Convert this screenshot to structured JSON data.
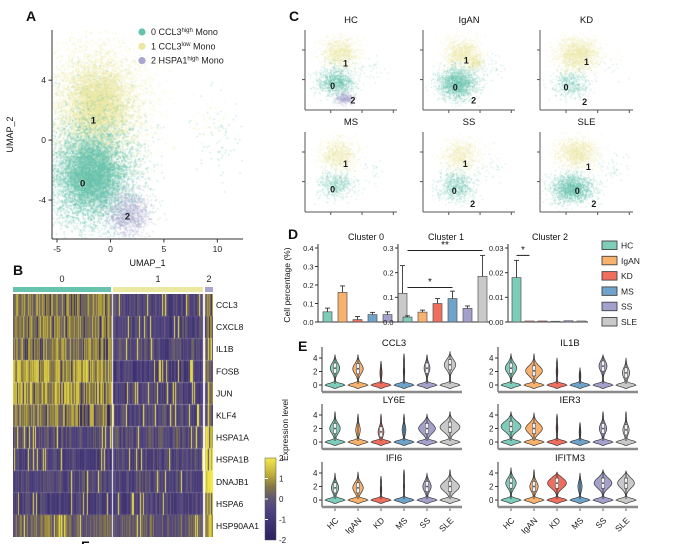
{
  "colors": {
    "cluster0": "#68C3AE",
    "cluster1": "#EBE8A2",
    "cluster2": "#A9A5CE",
    "groups": [
      "#7ECCBA",
      "#F9B16E",
      "#EF6E5E",
      "#6FA3C9",
      "#A3A0CC",
      "#C9C9C9"
    ],
    "axis": "#333333"
  },
  "panels": {
    "A": {
      "label": "A"
    },
    "B": {
      "label": "B"
    },
    "C": {
      "label": "C"
    },
    "D": {
      "label": "D"
    },
    "E": {
      "label": "E"
    },
    "F": {
      "label": "F"
    }
  },
  "chart_data": [
    {
      "id": "A",
      "type": "scatter",
      "xlabel": "UMAP_1",
      "ylabel": "UMAP_2",
      "xticks": [
        -5,
        0,
        5,
        10
      ],
      "yticks": [
        4,
        0,
        -4
      ],
      "xlim": [
        -5.47,
        12.4
      ],
      "ylim": [
        -6.6,
        7.35
      ],
      "legend": [
        {
          "pre": "0 CCL3",
          "sup": "high",
          "post": " Mono",
          "color": "#68C3AE"
        },
        {
          "pre": "1 CCL3",
          "sup": "low",
          "post": " Mono",
          "color": "#EBE8A2"
        },
        {
          "pre": "2 HSPA1",
          "sup": "high",
          "post": " Mono",
          "color": "#A9A5CE"
        }
      ],
      "clusters": [
        {
          "name": "1",
          "color": "#EBE8A2",
          "cx": -1.2,
          "cy": 2.4,
          "sx": 2.3,
          "sy": 2.0,
          "n": 4500,
          "label": [
            -1.6,
            1.3
          ]
        },
        {
          "name": "0",
          "color": "#68C3AE",
          "cx": -1.8,
          "cy": -2.3,
          "sx": 2.3,
          "sy": 1.9,
          "n": 5000,
          "label": [
            -2.6,
            -2.9
          ]
        },
        {
          "name": "2",
          "color": "#A9A5CE",
          "cx": 1.6,
          "cy": -4.9,
          "sx": 1.05,
          "sy": 0.75,
          "n": 900,
          "label": [
            1.6,
            -5.1
          ]
        },
        {
          "name": "",
          "color": "#68C3AE",
          "cx": 9.8,
          "cy": 0.2,
          "sx": 1.2,
          "sy": 1.4,
          "n": 70
        },
        {
          "name": "",
          "color": "#EBE8A2",
          "cx": 9.4,
          "cy": 1.2,
          "sx": 1.2,
          "sy": 0.9,
          "n": 40
        }
      ]
    },
    {
      "id": "B",
      "type": "heatmap",
      "group_labels": [
        "0",
        "1",
        "2"
      ],
      "genes": [
        "CCL3",
        "CXCL8",
        "IL1B",
        "FOSB",
        "JUN",
        "KLF4",
        "HSPA1A",
        "HSPA1B",
        "DNAJB1",
        "HSPA6",
        "HSP90AA1"
      ],
      "means": [
        [
          0.7,
          -0.55,
          0.6
        ],
        [
          0.8,
          -0.6,
          0.4
        ],
        [
          0.75,
          -0.45,
          0.3
        ],
        [
          1.15,
          -0.75,
          0.1
        ],
        [
          1.1,
          -0.65,
          0.3
        ],
        [
          0.7,
          -0.45,
          0.1
        ],
        [
          -0.35,
          -0.35,
          1.9
        ],
        [
          -0.65,
          -0.6,
          1.9
        ],
        [
          -0.45,
          -0.45,
          1.8
        ],
        [
          -0.75,
          -0.7,
          1.3
        ],
        [
          0.25,
          0.05,
          1.5
        ]
      ],
      "colorbar_ticks": [
        "2",
        "1",
        "0",
        "-1",
        "-2"
      ]
    },
    {
      "id": "C",
      "type": "scatter-grid",
      "plots": [
        {
          "title": "HC",
          "labels": [
            {
              "t": "1",
              "x": 0.44,
              "y": 0.58
            },
            {
              "t": "0",
              "x": 0.3,
              "y": 0.3
            },
            {
              "t": "2",
              "x": 0.52,
              "y": 0.12
            }
          ],
          "blobs": [
            {
              "c": "y",
              "cx": 0.38,
              "cy": 0.72,
              "sx": 0.105,
              "sy": 0.095,
              "n": 900
            },
            {
              "c": "t",
              "cx": 0.34,
              "cy": 0.36,
              "sx": 0.1,
              "sy": 0.09,
              "n": 1000
            },
            {
              "c": "p",
              "cx": 0.43,
              "cy": 0.145,
              "sx": 0.05,
              "sy": 0.038,
              "n": 320
            },
            {
              "c": "t",
              "cx": 0.75,
              "cy": 0.55,
              "sx": 0.08,
              "sy": 0.09,
              "n": 28
            }
          ]
        },
        {
          "title": "IgAN",
          "labels": [
            {
              "t": "1",
              "x": 0.47,
              "y": 0.62
            },
            {
              "t": "0",
              "x": 0.35,
              "y": 0.28
            },
            {
              "t": "2",
              "x": 0.55,
              "y": 0.12
            }
          ],
          "blobs": [
            {
              "c": "y",
              "cx": 0.42,
              "cy": 0.72,
              "sx": 0.1,
              "sy": 0.09,
              "n": 850
            },
            {
              "c": "y",
              "cx": 0.56,
              "cy": 0.6,
              "sx": 0.05,
              "sy": 0.05,
              "n": 260
            },
            {
              "c": "t",
              "cx": 0.37,
              "cy": 0.34,
              "sx": 0.105,
              "sy": 0.095,
              "n": 1700
            },
            {
              "c": "t",
              "cx": 0.75,
              "cy": 0.55,
              "sx": 0.08,
              "sy": 0.09,
              "n": 36
            }
          ]
        },
        {
          "title": "KD",
          "labels": [
            {
              "t": "1",
              "x": 0.5,
              "y": 0.6
            },
            {
              "t": "0",
              "x": 0.28,
              "y": 0.28
            },
            {
              "t": "2",
              "x": 0.48,
              "y": 0.1
            }
          ],
          "blobs": [
            {
              "c": "y",
              "cx": 0.4,
              "cy": 0.7,
              "sx": 0.115,
              "sy": 0.105,
              "n": 1500
            },
            {
              "c": "t",
              "cx": 0.33,
              "cy": 0.33,
              "sx": 0.1,
              "sy": 0.09,
              "n": 450
            },
            {
              "c": "t",
              "cx": 0.75,
              "cy": 0.55,
              "sx": 0.08,
              "sy": 0.09,
              "n": 12
            },
            {
              "c": "y",
              "cx": 0.8,
              "cy": 0.65,
              "sx": 0.05,
              "sy": 0.05,
              "n": 8
            }
          ]
        },
        {
          "title": "MS",
          "labels": [
            {
              "t": "1",
              "x": 0.44,
              "y": 0.6
            },
            {
              "t": "0",
              "x": 0.3,
              "y": 0.28
            }
          ],
          "blobs": [
            {
              "c": "y",
              "cx": 0.36,
              "cy": 0.72,
              "sx": 0.105,
              "sy": 0.095,
              "n": 800
            },
            {
              "c": "t",
              "cx": 0.33,
              "cy": 0.35,
              "sx": 0.1,
              "sy": 0.09,
              "n": 470
            },
            {
              "c": "t",
              "cx": 0.75,
              "cy": 0.55,
              "sx": 0.08,
              "sy": 0.09,
              "n": 22
            }
          ]
        },
        {
          "title": "SS",
          "labels": [
            {
              "t": "1",
              "x": 0.46,
              "y": 0.6
            },
            {
              "t": "0",
              "x": 0.34,
              "y": 0.26
            },
            {
              "t": "2",
              "x": 0.54,
              "y": 0.1
            }
          ],
          "blobs": [
            {
              "c": "y",
              "cx": 0.4,
              "cy": 0.72,
              "sx": 0.105,
              "sy": 0.1,
              "n": 650
            },
            {
              "c": "t",
              "cx": 0.36,
              "cy": 0.33,
              "sx": 0.1,
              "sy": 0.095,
              "n": 650
            },
            {
              "c": "t",
              "cx": 0.75,
              "cy": 0.55,
              "sx": 0.08,
              "sy": 0.09,
              "n": 30
            }
          ]
        },
        {
          "title": "SLE",
          "labels": [
            {
              "t": "1",
              "x": 0.52,
              "y": 0.56
            },
            {
              "t": "0",
              "x": 0.4,
              "y": 0.26
            },
            {
              "t": "2",
              "x": 0.58,
              "y": 0.1
            }
          ],
          "blobs": [
            {
              "c": "y",
              "cx": 0.4,
              "cy": 0.74,
              "sx": 0.11,
              "sy": 0.095,
              "n": 1100
            },
            {
              "c": "t",
              "cx": 0.34,
              "cy": 0.3,
              "sx": 0.115,
              "sy": 0.09,
              "n": 1600
            },
            {
              "c": "t",
              "cx": 0.75,
              "cy": 0.55,
              "sx": 0.08,
              "sy": 0.09,
              "n": 45
            }
          ]
        }
      ]
    },
    {
      "id": "D",
      "type": "bar",
      "ylabel": "Cell percentage (%)",
      "group_labels": [
        "HC",
        "IgAN",
        "KD",
        "MS",
        "SS",
        "SLE"
      ],
      "charts": [
        {
          "title": "Cluster 0",
          "ymax": 0.4,
          "yticks": [
            "0.0",
            "0.1",
            "0.2",
            "0.3",
            "0.4"
          ],
          "values": [
            0.055,
            0.16,
            0.013,
            0.04,
            0.04,
            0.155
          ],
          "errors": [
            0.02,
            0.035,
            0.017,
            0.012,
            0.015,
            0.15
          ],
          "sig": []
        },
        {
          "title": "Cluster 1",
          "ymax": 0.3,
          "yticks": [
            "0.0",
            "0.1",
            "0.2",
            "0.3"
          ],
          "values": [
            0.02,
            0.04,
            0.075,
            0.095,
            0.055,
            0.185
          ],
          "errors": [
            0.005,
            0.008,
            0.02,
            0.03,
            0.01,
            0.085
          ],
          "sig": [
            {
              "from": 0,
              "to": 3,
              "y": 0.14,
              "label": "*"
            },
            {
              "from": 0,
              "to": 5,
              "y": 0.29,
              "label": "**"
            }
          ]
        },
        {
          "title": "Cluster 2",
          "ymax": 0.03,
          "yticks": [
            "0.00",
            "0.01",
            "0.02",
            "0.03"
          ],
          "values": [
            0.018,
            0.0004,
            0.0004,
            0.0003,
            0.0005,
            0.0004
          ],
          "errors": [
            0.007,
            0,
            0,
            0,
            0,
            0
          ],
          "sig": [
            {
              "from": 0,
              "to": 1,
              "y": 0.027,
              "label": "*"
            }
          ]
        }
      ]
    },
    {
      "id": "E",
      "type": "violin",
      "ylabel": "Expression level",
      "yticks": [
        4,
        2,
        0
      ],
      "group_labels": [
        "HC",
        "IgAN",
        "KD",
        "MS",
        "SS",
        "SLE"
      ],
      "plots": [
        {
          "title": "CCL3",
          "violins": [
            [
              4.6,
              2.5,
              0.45
            ],
            [
              4.6,
              2.4,
              0.5
            ],
            [
              3.6,
              1.8,
              0.1
            ],
            [
              4.7,
              2.0,
              0.07
            ],
            [
              4.6,
              2.5,
              0.28
            ],
            [
              5.0,
              3.0,
              0.55
            ]
          ]
        },
        {
          "title": "IL1B",
          "violins": [
            [
              4.7,
              2.5,
              0.55
            ],
            [
              4.7,
              2.1,
              0.8
            ],
            [
              4.0,
              2.0,
              0.08
            ],
            [
              2.6,
              1.3,
              0.08
            ],
            [
              4.6,
              2.8,
              0.38
            ],
            [
              4.0,
              1.8,
              0.35
            ]
          ]
        },
        {
          "title": "LY6E",
          "violins": [
            [
              4.6,
              2.0,
              0.5
            ],
            [
              4.2,
              1.8,
              0.22
            ],
            [
              4.2,
              1.5,
              0.28
            ],
            [
              4.2,
              1.8,
              0.18
            ],
            [
              4.2,
              2.0,
              0.8
            ],
            [
              4.6,
              2.2,
              0.95
            ]
          ]
        },
        {
          "title": "IER3",
          "violins": [
            [
              4.6,
              2.3,
              0.95
            ],
            [
              4.4,
              2.0,
              0.8
            ],
            [
              4.2,
              2.0,
              0.08
            ],
            [
              3.0,
              1.4,
              0.08
            ],
            [
              4.6,
              2.0,
              0.35
            ],
            [
              4.6,
              1.8,
              0.3
            ]
          ]
        },
        {
          "title": "IFI6",
          "violins": [
            [
              4.0,
              1.8,
              0.35
            ],
            [
              4.2,
              1.8,
              0.5
            ],
            [
              3.6,
              1.5,
              0.07
            ],
            [
              4.6,
              2.0,
              0.06
            ],
            [
              4.0,
              2.0,
              0.4
            ],
            [
              4.6,
              2.0,
              0.9
            ]
          ]
        },
        {
          "title": "IFITM3",
          "violins": [
            [
              4.8,
              2.5,
              0.5
            ],
            [
              4.6,
              2.0,
              0.4
            ],
            [
              4.2,
              2.5,
              0.9
            ],
            [
              4.0,
              2.0,
              0.2
            ],
            [
              4.6,
              2.5,
              0.85
            ],
            [
              4.4,
              2.5,
              0.8
            ]
          ]
        }
      ]
    }
  ]
}
